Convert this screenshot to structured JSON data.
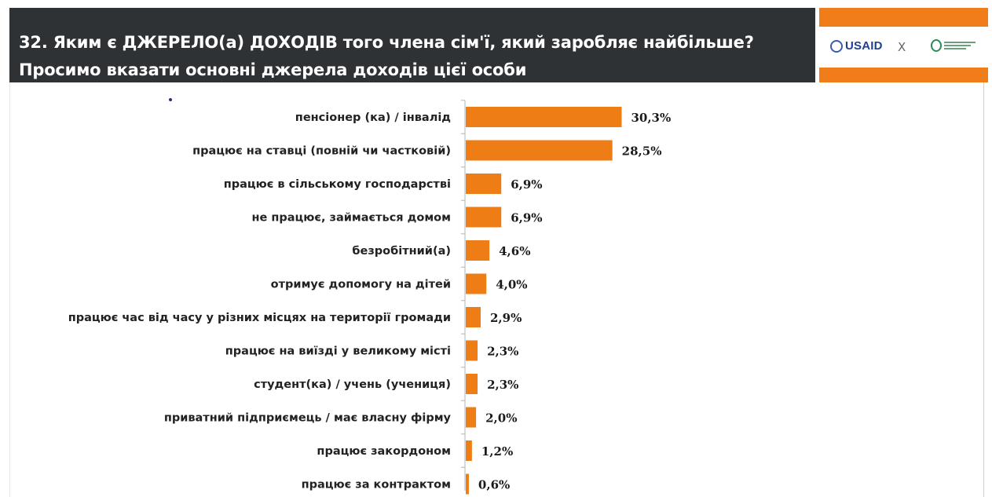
{
  "header": {
    "title_line1": "32. Яким є ДЖЕРЕЛО(а) ДОХОДІВ того члена сім'ї, який заробляє найбільше?",
    "title_line2": "Просимо вказати основні джерела доходів цієї особи"
  },
  "logos": {
    "usaid": "USAID",
    "mid_glyph": "X",
    "accent_color": "#f07d1a",
    "header_bg": "#2f3235",
    "usaid_color": "#1f3f8f"
  },
  "chart_data": {
    "type": "bar",
    "orientation": "horizontal",
    "bar_color": "#ee7d16",
    "categories": [
      "пенсіонер (ка) / інвалід",
      "працює на ставці (повній чи частковій)",
      "працює в сільському господарстві",
      "не працює, займається домом",
      "безробітний(а)",
      "отримує допомогу на дітей",
      "працює час від часу у різних місцях на території громади",
      "працює на виїзді у великому місті",
      "студент(ка) / учень (учениця)",
      "приватний підприємець / має власну фірму",
      "працює закордоном",
      "працює за контрактом"
    ],
    "values": [
      30.3,
      28.5,
      6.9,
      6.9,
      4.6,
      4.0,
      2.9,
      2.3,
      2.3,
      2.0,
      1.2,
      0.6
    ],
    "value_labels": [
      "30,3%",
      "28,5%",
      "6,9%",
      "6,9%",
      "4,6%",
      "4,0%",
      "2,9%",
      "2,3%",
      "2,3%",
      "2,0%",
      "1,2%",
      "0,6%"
    ],
    "xlim": [
      0,
      100
    ],
    "grid": false,
    "legend": "none"
  }
}
